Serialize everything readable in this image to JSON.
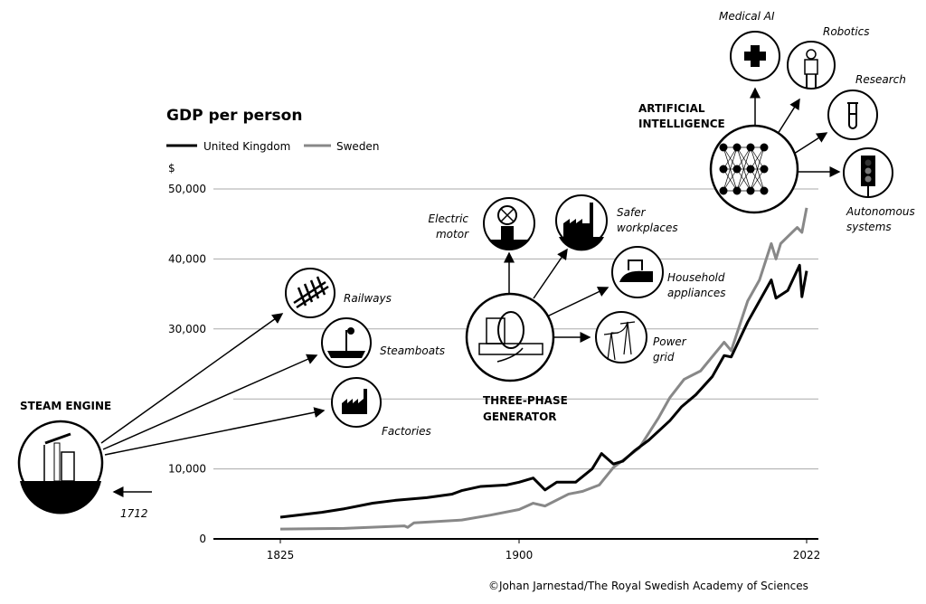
{
  "chart_data": {
    "type": "line",
    "title": "GDP per person",
    "ylabel": "$",
    "ylim": [
      0,
      50000
    ],
    "yticks": [
      0,
      10000,
      30000,
      40000,
      50000
    ],
    "ytick_labels": [
      "0",
      "10,000",
      "30,000",
      "40,000",
      "50,000"
    ],
    "gridlines_y": [
      10000,
      20000,
      30000,
      40000,
      50000
    ],
    "xticks": [
      1825,
      1900,
      2022
    ],
    "xtick_labels": [
      "1825",
      "1900",
      "2022"
    ],
    "grid": true,
    "legend_position": "top-left",
    "series": [
      {
        "name": "United Kingdom",
        "color": "#000000",
        "x": [
          1825,
          1838,
          1845,
          1854,
          1861,
          1871,
          1879,
          1882,
          1888,
          1896,
          1900,
          1906,
          1911,
          1916,
          1924,
          1931,
          1935,
          1940,
          1944,
          1949,
          1955,
          1964,
          1969,
          1975,
          1982,
          1987,
          1990,
          1997,
          2002,
          2007,
          2009,
          2014,
          2019,
          2020,
          2022
        ],
        "y": [
          3100,
          3800,
          4300,
          5100,
          5500,
          5900,
          6400,
          6900,
          7500,
          7700,
          8100,
          8700,
          7000,
          8100,
          8100,
          10000,
          12200,
          10700,
          11100,
          12600,
          14100,
          16900,
          18900,
          20600,
          23200,
          26200,
          26000,
          31000,
          34000,
          37000,
          34400,
          35500,
          39100,
          34600,
          38300
        ]
      },
      {
        "name": "Sweden",
        "color": "#888888",
        "x": [
          1825,
          1845,
          1864,
          1865,
          1867,
          1882,
          1891,
          1900,
          1906,
          1911,
          1921,
          1927,
          1934,
          1940,
          1951,
          1959,
          1964,
          1970,
          1977,
          1987,
          1990,
          1997,
          2002,
          2007,
          2009,
          2011,
          2014,
          2018,
          2020,
          2022
        ],
        "y": [
          1400,
          1500,
          1850,
          1650,
          2300,
          2700,
          3400,
          4200,
          5100,
          4700,
          6400,
          6800,
          7700,
          10200,
          13000,
          17200,
          20200,
          22800,
          24000,
          28100,
          26900,
          34000,
          37000,
          42200,
          40000,
          42200,
          43200,
          44500,
          43800,
          47300
        ]
      }
    ]
  },
  "annotations": {
    "steam_engine": {
      "title": "STEAM ENGINE",
      "year": "1712",
      "children": [
        "Railways",
        "Steamboats",
        "Factories"
      ]
    },
    "generator": {
      "title_1": "THREE-PHASE",
      "title_2": "GENERATOR",
      "children": [
        "Electric",
        "motor",
        "Safer",
        "workplaces",
        "Household",
        "appliances",
        "Power",
        "grid"
      ]
    },
    "ai": {
      "title_1": "ARTIFICIAL",
      "title_2": "INTELLIGENCE",
      "children": [
        "Medical AI",
        "Robotics",
        "Research",
        "Autonomous",
        "systems"
      ]
    }
  },
  "credit": "©Johan Jarnestad/The Royal Swedish Academy of Sciences"
}
